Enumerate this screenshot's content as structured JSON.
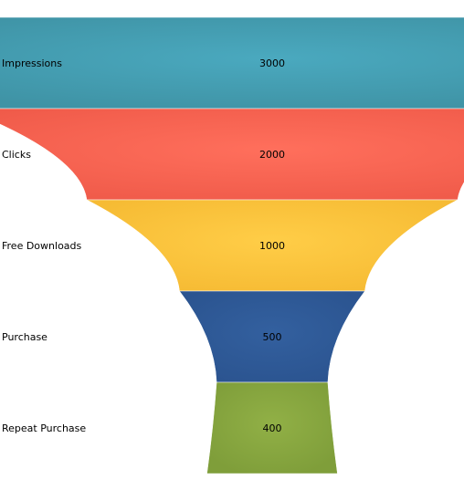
{
  "chart_data": {
    "type": "funnel",
    "categories": [
      "Impressions",
      "Clicks",
      "Free Downloads",
      "Purchase",
      "Repeat Purchase"
    ],
    "values": [
      3000,
      2000,
      1000,
      500,
      400
    ],
    "colors": [
      "#3f93a5",
      "#f05b4a",
      "#f6bb34",
      "#2b5490",
      "#7f9e3a"
    ],
    "highlights": [
      "#4aa9bf",
      "#ff6f5c",
      "#ffcd47",
      "#33609f",
      "#91b046"
    ],
    "title": "",
    "legend": "none"
  }
}
